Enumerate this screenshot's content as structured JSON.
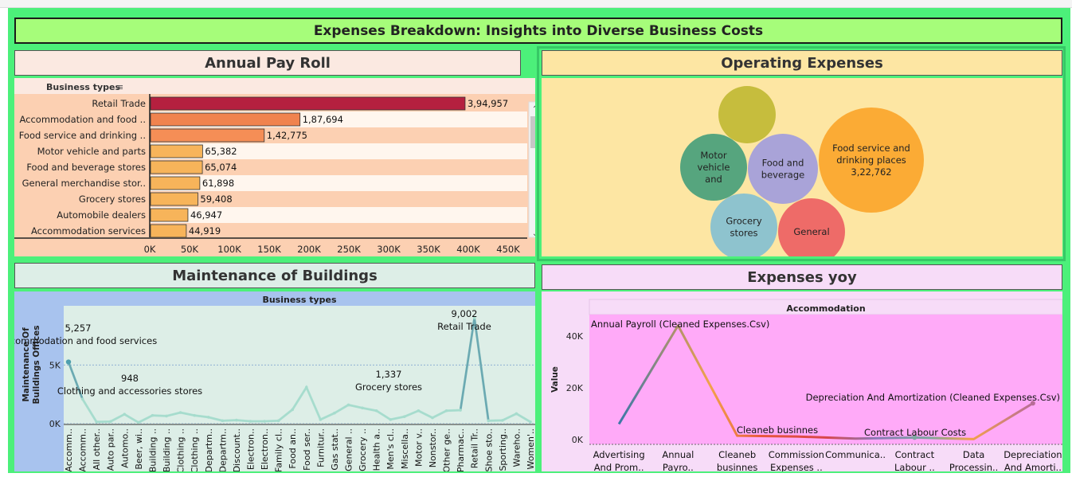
{
  "dashboard": {
    "title": "Expenses Breakdown: Insights into Diverse Business Costs"
  },
  "payroll": {
    "title": "Annual Pay Roll",
    "header": "Business types",
    "chart_data": {
      "type": "bar",
      "categories": [
        "Retail Trade",
        "Accommodation and food ..",
        "Food service and drinking ..",
        "Motor vehicle and parts",
        "Food and beverage stores",
        "General merchandise stor..",
        "Grocery stores",
        "Automobile dealers",
        "Accommodation services"
      ],
      "values": [
        394957,
        187694,
        142775,
        65382,
        65074,
        61898,
        59408,
        46947,
        44919
      ],
      "labels": [
        "3,94,957",
        "1,87,694",
        "1,42,775",
        "65,382",
        "65,074",
        "61,898",
        "59,408",
        "46,947",
        "44,919"
      ],
      "colors": [
        "#b5203f",
        "#f0834e",
        "#f58e56",
        "#f7b45a",
        "#f7b45a",
        "#f7b45a",
        "#f7b45a",
        "#f7b45a",
        "#f7b45a"
      ],
      "xlim": [
        0,
        450000
      ],
      "xticks": [
        "0K",
        "50K",
        "100K",
        "150K",
        "200K",
        "250K",
        "300K",
        "350K",
        "400K",
        "450K"
      ]
    }
  },
  "operating": {
    "title": "Operating Expenses",
    "chart_data": {
      "type": "bubble",
      "bubbles": [
        {
          "label": "",
          "value": 0,
          "color": "#c6bd3d"
        },
        {
          "label": "Motor vehicle and",
          "value": 0,
          "color": "#56a57e"
        },
        {
          "label": "Food and beverage",
          "value": 0,
          "color": "#a9a3d8"
        },
        {
          "label": "Food service and drinking places",
          "value": 322762,
          "value_label": "3,22,762",
          "color": "#fbab35"
        },
        {
          "label": "Grocery stores",
          "value": 0,
          "color": "#8ec3ce"
        },
        {
          "label": "General",
          "value": 0,
          "color": "#ee6b68"
        }
      ]
    }
  },
  "maintenance": {
    "title": "Maintenance of Buildings",
    "header": "Business types",
    "ylabel": "Maintenance Of Buildings Offices",
    "chart_data": {
      "type": "line",
      "categories": [
        "Accomm..",
        "Accomm..",
        "All other..",
        "Auto par..",
        "Automo..",
        "Beer, wi..",
        "Building ..",
        "Building ..",
        "Clothing ..",
        "Clothing ..",
        "Departm..",
        "Departm..",
        "Discount..",
        "Electron..",
        "Electron..",
        "Family cl..",
        "Food an..",
        "Food ser..",
        "Furnitur..",
        "Gas stat..",
        "General ..",
        "Grocery ..",
        "Health a..",
        "Men's cl..",
        "Miscella..",
        "Motor v..",
        "Nonstor..",
        "Other ge..",
        "Pharmac..",
        "Retail Tr..",
        "Shoe sto..",
        "Sporting..",
        "Wareho..",
        "Women'.."
      ],
      "values": [
        5257,
        2100,
        150,
        180,
        800,
        100,
        700,
        650,
        948,
        700,
        550,
        250,
        300,
        200,
        200,
        250,
        1200,
        3100,
        350,
        900,
        1600,
        1337,
        1100,
        350,
        600,
        1100,
        500,
        1100,
        1150,
        9002,
        250,
        280,
        850,
        150
      ],
      "ylim": [
        0,
        9500
      ],
      "yticks": [
        "0K",
        "5K"
      ],
      "annotations": [
        {
          "index": 0,
          "value": "5,257",
          "text": "Accommodation and food services"
        },
        {
          "index": 8,
          "value": "948",
          "text": "Clothing and accessories stores"
        },
        {
          "index": 21,
          "value": "1,337",
          "text": "Grocery stores"
        },
        {
          "index": 29,
          "value": "9,002",
          "text": "Retail Trade"
        }
      ]
    }
  },
  "yoy": {
    "title": "Expenses yoy",
    "header": "Accommodation",
    "ylabel": "Value",
    "chart_data": {
      "type": "line",
      "categories": [
        "Advertising And Prom..",
        "Annual Payro..",
        "Cleaneb businnes",
        "Commission Expenses ..",
        "Communica..",
        "Contract Labour ..",
        "Data Processin..",
        "Depreciation And Amorti.."
      ],
      "category_lines": [
        [
          "Advertising",
          "And Prom.."
        ],
        [
          "Annual",
          "Payro.."
        ],
        [
          "Cleaneb",
          "businnes"
        ],
        [
          "Commission",
          "Expenses .."
        ],
        [
          "Communica..",
          ""
        ],
        [
          "Contract",
          "Labour .."
        ],
        [
          "Data",
          "Processin.."
        ],
        [
          "Depreciation",
          "And Amorti.."
        ]
      ],
      "values": [
        6000,
        44000,
        1500,
        1200,
        400,
        800,
        200,
        14000
      ],
      "ylim": [
        0,
        47000
      ],
      "yticks": [
        "0K",
        "20K",
        "40K"
      ],
      "annotations": [
        {
          "index": 1,
          "text": "Annual Payroll (Cleaned Expenses.Csv)"
        },
        {
          "index": 2,
          "text": "Cleaneb businnes"
        },
        {
          "index": 5,
          "text": "Contract Labour Costs"
        },
        {
          "index": 7,
          "text": "Depreciation And Amortization (Cleaned Expenses.Csv)"
        }
      ]
    }
  }
}
